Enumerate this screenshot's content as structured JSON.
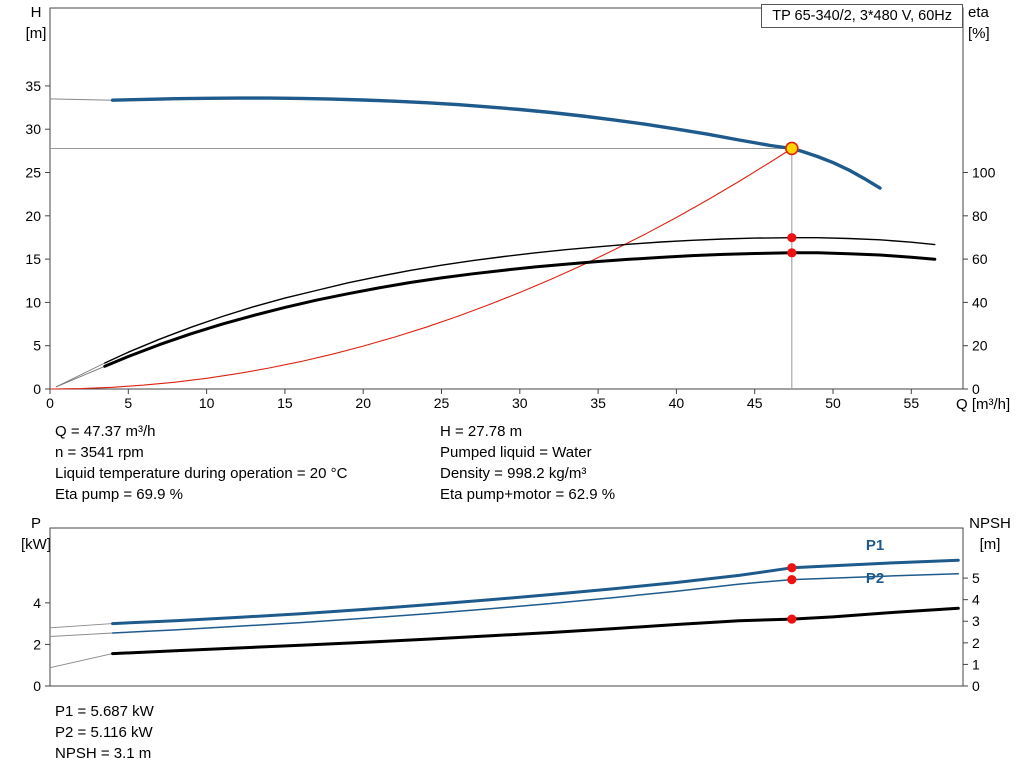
{
  "title_box": "TP 65-340/2, 3*480 V, 60Hz",
  "info": {
    "left": [
      "Q = 47.37 m³/h",
      "n = 3541 rpm",
      "Liquid temperature during operation = 20 °C",
      "Eta pump = 69.9 %"
    ],
    "right": [
      "H = 27.78 m",
      "Pumped liquid = Water",
      "Density = 998.2 kg/m³",
      "Eta pump+motor = 62.9 %"
    ],
    "bottom": [
      "P1 = 5.687 kW",
      "P2 = 5.116 kW",
      "NPSH = 3.1 m"
    ]
  },
  "colors": {
    "curve_blue": "#1f5a8d",
    "dot_red": "#ee1111",
    "duty_yellow": "#ffd400",
    "system_red": "#dd2211",
    "ref_gray": "#999999"
  },
  "chart_data": [
    {
      "name": "qh-eta",
      "type": "line",
      "x_axis": {
        "label": "Q [m³/h]",
        "ticks": [
          0,
          5,
          10,
          15,
          20,
          25,
          30,
          35,
          40,
          45,
          50,
          55
        ],
        "max": 58.3,
        "show_tick_labels": true
      },
      "left_axis": {
        "title": [
          "H",
          "[m]"
        ],
        "ticks": [
          0,
          5,
          10,
          15,
          20,
          25,
          30,
          35
        ],
        "max": 44
      },
      "right_axis": {
        "title": [
          "eta",
          "[%]"
        ],
        "ticks": [
          0,
          20,
          40,
          60,
          80,
          100
        ],
        "max": 176
      },
      "frame_color": "#444444",
      "ref_lines": [
        {
          "dir": "v",
          "axis": "left",
          "x": 47.37,
          "from": 0,
          "to": 27.78,
          "color": "#999999",
          "name": "duty-flow-refline"
        },
        {
          "dir": "h",
          "axis": "left",
          "y": 27.78,
          "from": 0,
          "to": 47.37,
          "color": "#999999",
          "name": "duty-head-refline"
        }
      ],
      "series": [
        {
          "name": "system-curve",
          "axis": "left",
          "color": "#dd2211",
          "width": 1.1,
          "points": [
            [
              0,
              0
            ],
            [
              2,
              0.05
            ],
            [
              4,
              0.2
            ],
            [
              6,
              0.45
            ],
            [
              8,
              0.79
            ],
            [
              10,
              1.24
            ],
            [
              12,
              1.78
            ],
            [
              14,
              2.43
            ],
            [
              16,
              3.17
            ],
            [
              18,
              4.01
            ],
            [
              20,
              4.95
            ],
            [
              22,
              5.99
            ],
            [
              24,
              7.13
            ],
            [
              26,
              8.37
            ],
            [
              28,
              9.71
            ],
            [
              30,
              11.14
            ],
            [
              32,
              12.68
            ],
            [
              34,
              14.31
            ],
            [
              36,
              16.05
            ],
            [
              38,
              17.88
            ],
            [
              40,
              19.81
            ],
            [
              42,
              21.84
            ],
            [
              44,
              23.97
            ],
            [
              46,
              26.2
            ],
            [
              47.37,
              27.78
            ]
          ]
        },
        {
          "name": "h-lead-in",
          "axis": "left",
          "color": "#888888",
          "width": 1,
          "points": [
            [
              0,
              33.5
            ],
            [
              4,
              33.35
            ]
          ]
        },
        {
          "name": "h-curve",
          "axis": "left",
          "color": "#1f5a8d",
          "width": 3.4,
          "points": [
            [
              4,
              33.35
            ],
            [
              6,
              33.45
            ],
            [
              8,
              33.52
            ],
            [
              10,
              33.57
            ],
            [
              12,
              33.6
            ],
            [
              14,
              33.6
            ],
            [
              16,
              33.56
            ],
            [
              18,
              33.48
            ],
            [
              20,
              33.38
            ],
            [
              22,
              33.24
            ],
            [
              24,
              33.06
            ],
            [
              26,
              32.84
            ],
            [
              28,
              32.58
            ],
            [
              30,
              32.28
            ],
            [
              32,
              31.93
            ],
            [
              34,
              31.53
            ],
            [
              36,
              31.08
            ],
            [
              38,
              30.58
            ],
            [
              40,
              30.02
            ],
            [
              42,
              29.42
            ],
            [
              44,
              28.76
            ],
            [
              46,
              28.12
            ],
            [
              47.37,
              27.78
            ],
            [
              48,
              27.45
            ],
            [
              49,
              26.85
            ],
            [
              50,
              26.15
            ],
            [
              51,
              25.3
            ],
            [
              52,
              24.3
            ],
            [
              53,
              23.2
            ]
          ]
        },
        {
          "name": "eta-pump-lead-in",
          "axis": "right",
          "color": "#777777",
          "width": 0.9,
          "points": [
            [
              0.4,
              1
            ],
            [
              3.5,
              12
            ]
          ]
        },
        {
          "name": "eta-pump-motor-lead-in",
          "axis": "right",
          "color": "#777777",
          "width": 0.9,
          "points": [
            [
              0.4,
              1
            ],
            [
              3.5,
              10.5
            ]
          ]
        },
        {
          "name": "eta-pump-curve",
          "axis": "right",
          "color": "#000000",
          "width": 1.4,
          "points": [
            [
              3.5,
              12
            ],
            [
              5,
              17
            ],
            [
              7,
              23
            ],
            [
              9,
              28.5
            ],
            [
              11,
              33.5
            ],
            [
              13,
              38
            ],
            [
              15,
              42
            ],
            [
              17,
              45.5
            ],
            [
              19,
              49
            ],
            [
              21,
              52
            ],
            [
              23,
              54.8
            ],
            [
              25,
              57.2
            ],
            [
              27,
              59.3
            ],
            [
              29,
              61.2
            ],
            [
              31,
              62.9
            ],
            [
              33,
              64.4
            ],
            [
              35,
              65.7
            ],
            [
              37,
              66.9
            ],
            [
              39,
              67.9
            ],
            [
              41,
              68.7
            ],
            [
              43,
              69.3
            ],
            [
              45,
              69.7
            ],
            [
              47.37,
              69.9
            ],
            [
              49,
              69.9
            ],
            [
              51,
              69.5
            ],
            [
              53,
              68.9
            ],
            [
              55,
              67.8
            ],
            [
              56.5,
              66.7
            ]
          ]
        },
        {
          "name": "eta-pump-motor-curve",
          "axis": "right",
          "color": "#000000",
          "width": 3,
          "points": [
            [
              3.5,
              10.5
            ],
            [
              5,
              15
            ],
            [
              7,
              20.5
            ],
            [
              9,
              25.5
            ],
            [
              11,
              30
            ],
            [
              13,
              34
            ],
            [
              15,
              37.7
            ],
            [
              17,
              41
            ],
            [
              19,
              44
            ],
            [
              21,
              46.7
            ],
            [
              23,
              49.2
            ],
            [
              25,
              51.3
            ],
            [
              27,
              53.2
            ],
            [
              29,
              54.9
            ],
            [
              31,
              56.4
            ],
            [
              33,
              57.7
            ],
            [
              35,
              58.9
            ],
            [
              37,
              59.9
            ],
            [
              39,
              60.8
            ],
            [
              41,
              61.6
            ],
            [
              43,
              62.2
            ],
            [
              45,
              62.6
            ],
            [
              47.37,
              62.9
            ],
            [
              49,
              62.9
            ],
            [
              51,
              62.5
            ],
            [
              53,
              61.9
            ],
            [
              55,
              60.9
            ],
            [
              56.5,
              59.9
            ]
          ]
        }
      ],
      "markers": [
        {
          "name": "duty-point",
          "axis": "left",
          "x": 47.37,
          "y": 27.78,
          "r": 6,
          "fill": "#ffd400",
          "stroke": "#dd2211",
          "stroke_width": 1.6
        },
        {
          "name": "eta-pump-point",
          "axis": "right",
          "x": 47.37,
          "y": 69.9,
          "r": 4.6,
          "fill": "#ee1111"
        },
        {
          "name": "eta-pump-motor-point",
          "axis": "right",
          "x": 47.37,
          "y": 62.9,
          "r": 4.6,
          "fill": "#ee1111"
        }
      ],
      "annotations": []
    },
    {
      "name": "p-npsh",
      "type": "line",
      "x_axis": {
        "label": "",
        "ticks": [],
        "max": 58.3,
        "show_tick_labels": false
      },
      "left_axis": {
        "title": [
          "P",
          "[kW]"
        ],
        "ticks": [
          0,
          2,
          4
        ],
        "max": 7.6
      },
      "right_axis": {
        "title": [
          "NPSH",
          "[m]"
        ],
        "ticks": [
          0,
          1,
          2,
          3,
          4,
          5
        ],
        "max": 7.32
      },
      "frame_color": "#444444",
      "ref_lines": [],
      "series": [
        {
          "name": "p1-lead-in",
          "axis": "left",
          "color": "#888888",
          "width": 0.9,
          "points": [
            [
              0,
              2.8
            ],
            [
              4,
              3.0
            ]
          ]
        },
        {
          "name": "p2-lead-in",
          "axis": "left",
          "color": "#888888",
          "width": 0.9,
          "points": [
            [
              0,
              2.38
            ],
            [
              4,
              2.55
            ]
          ]
        },
        {
          "name": "npsh-lead-in",
          "axis": "right",
          "color": "#888888",
          "width": 0.9,
          "points": [
            [
              0,
              0.85
            ],
            [
              4,
              1.5
            ]
          ]
        },
        {
          "name": "p1-curve",
          "axis": "left",
          "color": "#1f5a8d",
          "width": 3,
          "points": [
            [
              4,
              3.0
            ],
            [
              8,
              3.14
            ],
            [
              12,
              3.3
            ],
            [
              16,
              3.48
            ],
            [
              20,
              3.68
            ],
            [
              24,
              3.9
            ],
            [
              28,
              4.14
            ],
            [
              32,
              4.4
            ],
            [
              36,
              4.68
            ],
            [
              40,
              4.98
            ],
            [
              44,
              5.32
            ],
            [
              47.37,
              5.687
            ],
            [
              50,
              5.78
            ],
            [
              54,
              5.93
            ],
            [
              58,
              6.05
            ]
          ]
        },
        {
          "name": "p2-curve",
          "axis": "left",
          "color": "#1f5a8d",
          "width": 1.5,
          "points": [
            [
              4,
              2.55
            ],
            [
              8,
              2.7
            ],
            [
              12,
              2.87
            ],
            [
              16,
              3.05
            ],
            [
              20,
              3.25
            ],
            [
              24,
              3.47
            ],
            [
              28,
              3.71
            ],
            [
              32,
              3.97
            ],
            [
              36,
              4.25
            ],
            [
              40,
              4.56
            ],
            [
              44,
              4.9
            ],
            [
              47.37,
              5.116
            ],
            [
              50,
              5.19
            ],
            [
              54,
              5.3
            ],
            [
              58,
              5.4
            ]
          ]
        },
        {
          "name": "npsh-curve",
          "axis": "right",
          "color": "#000000",
          "width": 3,
          "points": [
            [
              4,
              1.5
            ],
            [
              8,
              1.63
            ],
            [
              12,
              1.76
            ],
            [
              16,
              1.89
            ],
            [
              20,
              2.02
            ],
            [
              24,
              2.17
            ],
            [
              28,
              2.32
            ],
            [
              32,
              2.48
            ],
            [
              36,
              2.66
            ],
            [
              40,
              2.85
            ],
            [
              44,
              3.02
            ],
            [
              47.37,
              3.1
            ],
            [
              50,
              3.2
            ],
            [
              54,
              3.42
            ],
            [
              58,
              3.6
            ]
          ]
        }
      ],
      "markers": [
        {
          "name": "p1-point",
          "axis": "left",
          "x": 47.37,
          "y": 5.687,
          "r": 4.6,
          "fill": "#ee1111"
        },
        {
          "name": "p2-point",
          "axis": "left",
          "x": 47.37,
          "y": 5.116,
          "r": 4.6,
          "fill": "#ee1111"
        },
        {
          "name": "npsh-point",
          "axis": "right",
          "x": 47.37,
          "y": 3.1,
          "r": 4.6,
          "fill": "#ee1111"
        }
      ],
      "annotations": [
        {
          "name": "p1-label",
          "text": "P1",
          "axis": "left",
          "x": 52.1,
          "y": 6.55,
          "color": "#1f5a8d"
        },
        {
          "name": "p2-label",
          "text": "P2",
          "axis": "left",
          "x": 52.1,
          "y": 4.95,
          "color": "#1f5a8d"
        }
      ]
    }
  ]
}
